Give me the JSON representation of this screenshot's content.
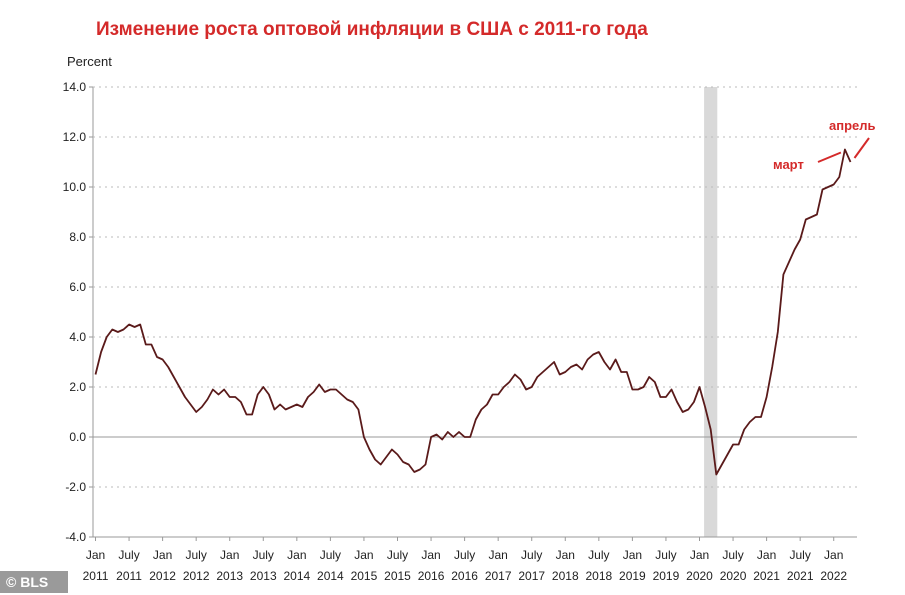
{
  "title": "Изменение роста оптовой инфляции в США с 2011-го года",
  "credit": "© BLS",
  "chart_data": {
    "type": "line",
    "ylabel": "Percent",
    "ylim": [
      -4.0,
      14.0
    ],
    "y_ticks": [
      "-4.0",
      "-2.0",
      "0.0",
      "2.0",
      "4.0",
      "6.0",
      "8.0",
      "10.0",
      "12.0",
      "14.0"
    ],
    "x_ticks": [
      {
        "month": "Jan",
        "year": "2011"
      },
      {
        "month": "July",
        "year": "2011"
      },
      {
        "month": "Jan",
        "year": "2012"
      },
      {
        "month": "July",
        "year": "2012"
      },
      {
        "month": "Jan",
        "year": "2013"
      },
      {
        "month": "July",
        "year": "2013"
      },
      {
        "month": "Jan",
        "year": "2014"
      },
      {
        "month": "July",
        "year": "2014"
      },
      {
        "month": "Jan",
        "year": "2015"
      },
      {
        "month": "July",
        "year": "2015"
      },
      {
        "month": "Jan",
        "year": "2016"
      },
      {
        "month": "July",
        "year": "2016"
      },
      {
        "month": "Jan",
        "year": "2017"
      },
      {
        "month": "July",
        "year": "2017"
      },
      {
        "month": "Jan",
        "year": "2018"
      },
      {
        "month": "July",
        "year": "2018"
      },
      {
        "month": "Jan",
        "year": "2019"
      },
      {
        "month": "July",
        "year": "2019"
      },
      {
        "month": "Jan",
        "year": "2020"
      },
      {
        "month": "July",
        "year": "2020"
      },
      {
        "month": "Jan",
        "year": "2021"
      },
      {
        "month": "July",
        "year": "2021"
      },
      {
        "month": "Jan",
        "year": "2022"
      }
    ],
    "grid": "dotted horizontal",
    "line_color": "#5a1a1a",
    "recession_shade": {
      "from": "2020-02",
      "to": "2020-04",
      "color": "#d9d9d9"
    },
    "series": [
      {
        "values": [
          {
            "x": "2011-01",
            "y": 2.5
          },
          {
            "x": "2011-02",
            "y": 3.4
          },
          {
            "x": "2011-03",
            "y": 4.0
          },
          {
            "x": "2011-04",
            "y": 4.3
          },
          {
            "x": "2011-05",
            "y": 4.2
          },
          {
            "x": "2011-06",
            "y": 4.3
          },
          {
            "x": "2011-07",
            "y": 4.5
          },
          {
            "x": "2011-08",
            "y": 4.4
          },
          {
            "x": "2011-09",
            "y": 4.5
          },
          {
            "x": "2011-10",
            "y": 3.7
          },
          {
            "x": "2011-11",
            "y": 3.7
          },
          {
            "x": "2011-12",
            "y": 3.2
          },
          {
            "x": "2012-01",
            "y": 3.1
          },
          {
            "x": "2012-02",
            "y": 2.8
          },
          {
            "x": "2012-03",
            "y": 2.4
          },
          {
            "x": "2012-04",
            "y": 2.0
          },
          {
            "x": "2012-05",
            "y": 1.6
          },
          {
            "x": "2012-06",
            "y": 1.3
          },
          {
            "x": "2012-07",
            "y": 1.0
          },
          {
            "x": "2012-08",
            "y": 1.2
          },
          {
            "x": "2012-09",
            "y": 1.5
          },
          {
            "x": "2012-10",
            "y": 1.9
          },
          {
            "x": "2012-11",
            "y": 1.7
          },
          {
            "x": "2012-12",
            "y": 1.9
          },
          {
            "x": "2013-01",
            "y": 1.6
          },
          {
            "x": "2013-02",
            "y": 1.6
          },
          {
            "x": "2013-03",
            "y": 1.4
          },
          {
            "x": "2013-04",
            "y": 0.9
          },
          {
            "x": "2013-05",
            "y": 0.9
          },
          {
            "x": "2013-06",
            "y": 1.7
          },
          {
            "x": "2013-07",
            "y": 2.0
          },
          {
            "x": "2013-08",
            "y": 1.7
          },
          {
            "x": "2013-09",
            "y": 1.1
          },
          {
            "x": "2013-10",
            "y": 1.3
          },
          {
            "x": "2013-11",
            "y": 1.1
          },
          {
            "x": "2013-12",
            "y": 1.2
          },
          {
            "x": "2014-01",
            "y": 1.3
          },
          {
            "x": "2014-02",
            "y": 1.2
          },
          {
            "x": "2014-03",
            "y": 1.6
          },
          {
            "x": "2014-04",
            "y": 1.8
          },
          {
            "x": "2014-05",
            "y": 2.1
          },
          {
            "x": "2014-06",
            "y": 1.8
          },
          {
            "x": "2014-07",
            "y": 1.9
          },
          {
            "x": "2014-08",
            "y": 1.9
          },
          {
            "x": "2014-09",
            "y": 1.7
          },
          {
            "x": "2014-10",
            "y": 1.5
          },
          {
            "x": "2014-11",
            "y": 1.4
          },
          {
            "x": "2014-12",
            "y": 1.1
          },
          {
            "x": "2015-01",
            "y": 0.0
          },
          {
            "x": "2015-02",
            "y": -0.5
          },
          {
            "x": "2015-03",
            "y": -0.9
          },
          {
            "x": "2015-04",
            "y": -1.1
          },
          {
            "x": "2015-05",
            "y": -0.8
          },
          {
            "x": "2015-06",
            "y": -0.5
          },
          {
            "x": "2015-07",
            "y": -0.7
          },
          {
            "x": "2015-08",
            "y": -1.0
          },
          {
            "x": "2015-09",
            "y": -1.1
          },
          {
            "x": "2015-10",
            "y": -1.4
          },
          {
            "x": "2015-11",
            "y": -1.3
          },
          {
            "x": "2015-12",
            "y": -1.1
          },
          {
            "x": "2016-01",
            "y": 0.0
          },
          {
            "x": "2016-02",
            "y": 0.1
          },
          {
            "x": "2016-03",
            "y": -0.1
          },
          {
            "x": "2016-04",
            "y": 0.2
          },
          {
            "x": "2016-05",
            "y": 0.0
          },
          {
            "x": "2016-06",
            "y": 0.2
          },
          {
            "x": "2016-07",
            "y": 0.0
          },
          {
            "x": "2016-08",
            "y": 0.0
          },
          {
            "x": "2016-09",
            "y": 0.7
          },
          {
            "x": "2016-10",
            "y": 1.1
          },
          {
            "x": "2016-11",
            "y": 1.3
          },
          {
            "x": "2016-12",
            "y": 1.7
          },
          {
            "x": "2017-01",
            "y": 1.7
          },
          {
            "x": "2017-02",
            "y": 2.0
          },
          {
            "x": "2017-03",
            "y": 2.2
          },
          {
            "x": "2017-04",
            "y": 2.5
          },
          {
            "x": "2017-05",
            "y": 2.3
          },
          {
            "x": "2017-06",
            "y": 1.9
          },
          {
            "x": "2017-07",
            "y": 2.0
          },
          {
            "x": "2017-08",
            "y": 2.4
          },
          {
            "x": "2017-09",
            "y": 2.6
          },
          {
            "x": "2017-10",
            "y": 2.8
          },
          {
            "x": "2017-11",
            "y": 3.0
          },
          {
            "x": "2017-12",
            "y": 2.5
          },
          {
            "x": "2018-01",
            "y": 2.6
          },
          {
            "x": "2018-02",
            "y": 2.8
          },
          {
            "x": "2018-03",
            "y": 2.9
          },
          {
            "x": "2018-04",
            "y": 2.7
          },
          {
            "x": "2018-05",
            "y": 3.1
          },
          {
            "x": "2018-06",
            "y": 3.3
          },
          {
            "x": "2018-07",
            "y": 3.4
          },
          {
            "x": "2018-08",
            "y": 3.0
          },
          {
            "x": "2018-09",
            "y": 2.7
          },
          {
            "x": "2018-10",
            "y": 3.1
          },
          {
            "x": "2018-11",
            "y": 2.6
          },
          {
            "x": "2018-12",
            "y": 2.6
          },
          {
            "x": "2019-01",
            "y": 1.9
          },
          {
            "x": "2019-02",
            "y": 1.9
          },
          {
            "x": "2019-03",
            "y": 2.0
          },
          {
            "x": "2019-04",
            "y": 2.4
          },
          {
            "x": "2019-05",
            "y": 2.2
          },
          {
            "x": "2019-06",
            "y": 1.6
          },
          {
            "x": "2019-07",
            "y": 1.6
          },
          {
            "x": "2019-08",
            "y": 1.9
          },
          {
            "x": "2019-09",
            "y": 1.4
          },
          {
            "x": "2019-10",
            "y": 1.0
          },
          {
            "x": "2019-11",
            "y": 1.1
          },
          {
            "x": "2019-12",
            "y": 1.4
          },
          {
            "x": "2020-01",
            "y": 2.0
          },
          {
            "x": "2020-02",
            "y": 1.2
          },
          {
            "x": "2020-03",
            "y": 0.3
          },
          {
            "x": "2020-04",
            "y": -1.5
          },
          {
            "x": "2020-05",
            "y": -1.1
          },
          {
            "x": "2020-06",
            "y": -0.7
          },
          {
            "x": "2020-07",
            "y": -0.3
          },
          {
            "x": "2020-08",
            "y": -0.3
          },
          {
            "x": "2020-09",
            "y": 0.3
          },
          {
            "x": "2020-10",
            "y": 0.6
          },
          {
            "x": "2020-11",
            "y": 0.8
          },
          {
            "x": "2020-12",
            "y": 0.8
          },
          {
            "x": "2021-01",
            "y": 1.6
          },
          {
            "x": "2021-02",
            "y": 2.8
          },
          {
            "x": "2021-03",
            "y": 4.2
          },
          {
            "x": "2021-04",
            "y": 6.5
          },
          {
            "x": "2021-05",
            "y": 7.0
          },
          {
            "x": "2021-06",
            "y": 7.5
          },
          {
            "x": "2021-07",
            "y": 7.9
          },
          {
            "x": "2021-08",
            "y": 8.7
          },
          {
            "x": "2021-09",
            "y": 8.8
          },
          {
            "x": "2021-10",
            "y": 8.9
          },
          {
            "x": "2021-11",
            "y": 9.9
          },
          {
            "x": "2021-12",
            "y": 10.0
          },
          {
            "x": "2022-01",
            "y": 10.1
          },
          {
            "x": "2022-02",
            "y": 10.4
          },
          {
            "x": "2022-03",
            "y": 11.5
          },
          {
            "x": "2022-04",
            "y": 11.0
          }
        ]
      }
    ],
    "annotations": [
      {
        "text": "март",
        "x": "2022-03",
        "color": "#d42a2a"
      },
      {
        "text": "апрель",
        "x": "2022-04",
        "color": "#d42a2a"
      }
    ]
  }
}
